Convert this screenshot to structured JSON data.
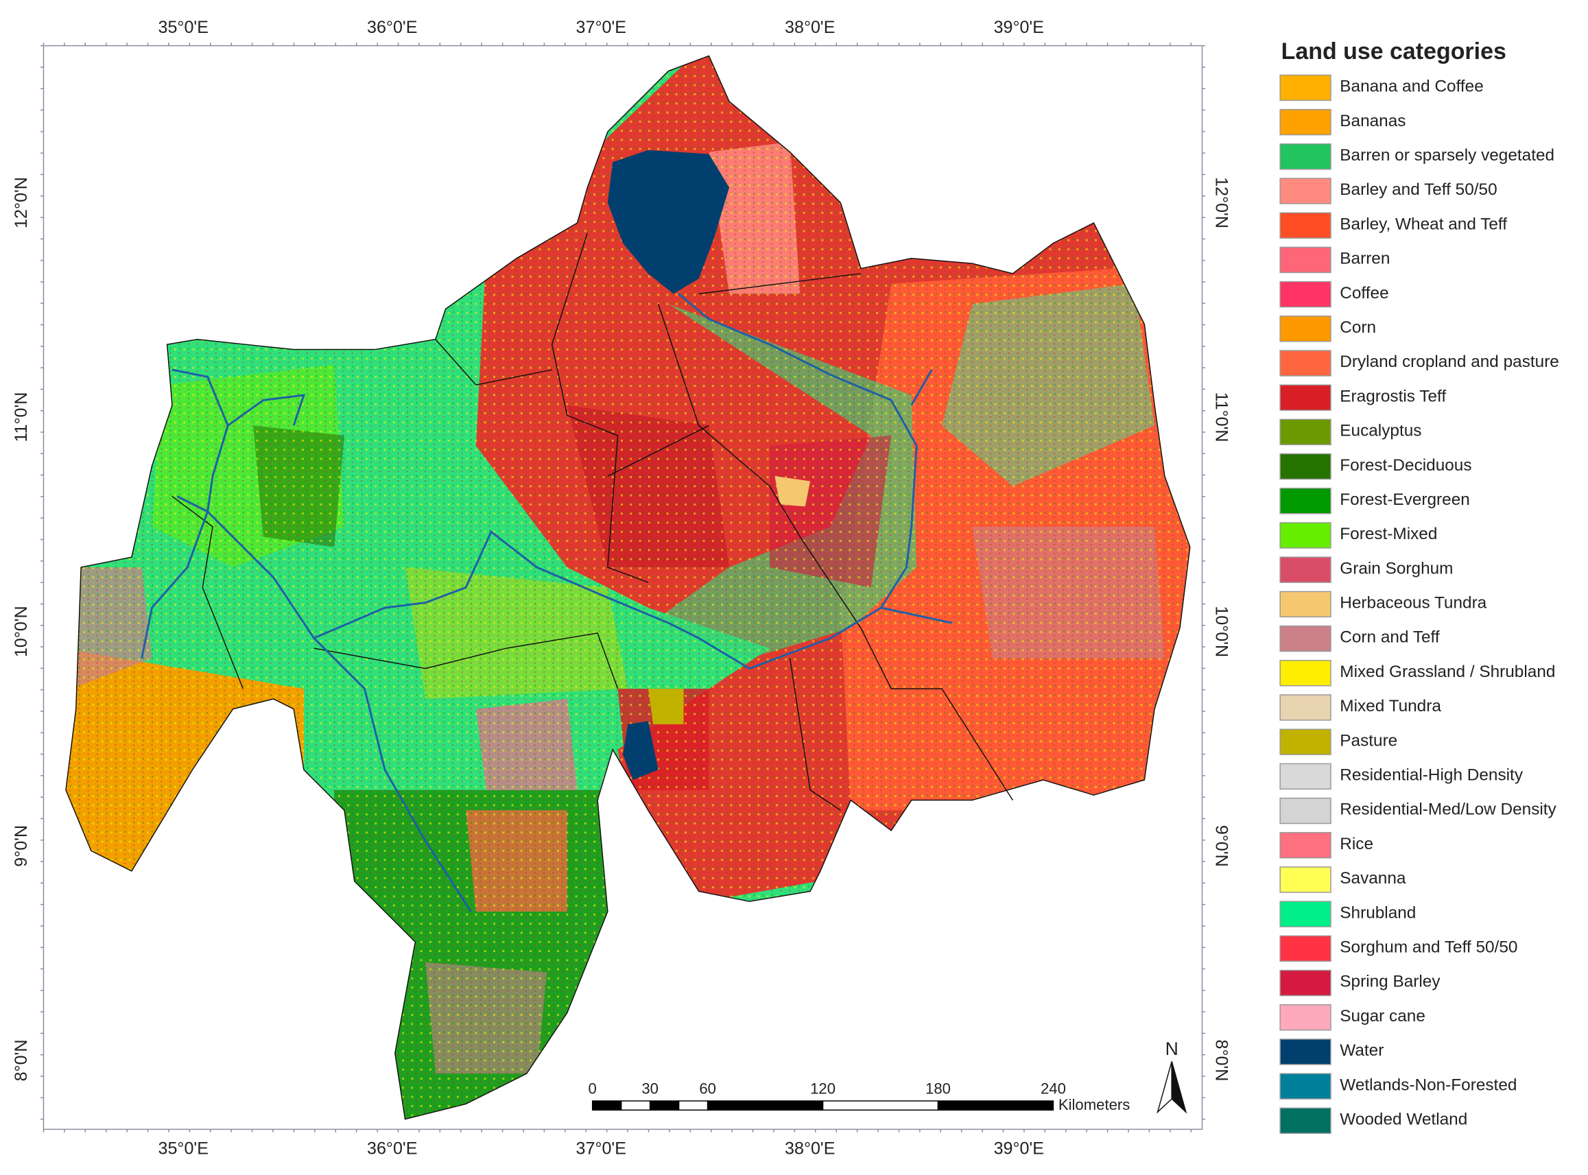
{
  "map": {
    "lon_labels": [
      "35°0'E",
      "36°0'E",
      "37°0'E",
      "38°0'E",
      "39°0'E"
    ],
    "lat_labels": [
      "12°0'N",
      "11°0'N",
      "10°0'N",
      "9°0'N",
      "8°0'N"
    ],
    "scale_bar": {
      "ticks": [
        0,
        30,
        60,
        120,
        180,
        240
      ],
      "unit": "Kilometers"
    },
    "north": "N"
  },
  "legend": {
    "title": "Land use categories",
    "items": [
      {
        "label": "Banana and Coffee",
        "color": "#ffb000"
      },
      {
        "label": "Bananas",
        "color": "#ffa200"
      },
      {
        "label": "Barren or sparsely vegetated",
        "color": "#21c45e"
      },
      {
        "label": "Barley and Teff 50/50",
        "color": "#ff8a80"
      },
      {
        "label": "Barley, Wheat and Teff",
        "color": "#ff4d26"
      },
      {
        "label": "Barren",
        "color": "#ff6677"
      },
      {
        "label": "Coffee",
        "color": "#ff3366"
      },
      {
        "label": "Corn",
        "color": "#ff9900"
      },
      {
        "label": "Dryland cropland and pasture",
        "color": "#ff6640"
      },
      {
        "label": "Eragrostis Teff",
        "color": "#d91f26"
      },
      {
        "label": "Eucalyptus",
        "color": "#6b9a00"
      },
      {
        "label": "Forest-Deciduous",
        "color": "#267300"
      },
      {
        "label": "Forest-Evergreen",
        "color": "#009900"
      },
      {
        "label": "Forest-Mixed",
        "color": "#66ee00"
      },
      {
        "label": "Grain Sorghum",
        "color": "#d94d66"
      },
      {
        "label": "Herbaceous Tundra",
        "color": "#f5c870"
      },
      {
        "label": "Corn and Teff",
        "color": "#cc8088"
      },
      {
        "label": "Mixed Grassland / Shrubland",
        "color": "#ffee00"
      },
      {
        "label": "Mixed Tundra",
        "color": "#e8d4b0"
      },
      {
        "label": "Pasture",
        "color": "#c2b200"
      },
      {
        "label": "Residential-High Density",
        "color": "#d9d9d9"
      },
      {
        "label": "Residential-Med/Low Density",
        "color": "#d4d4d4"
      },
      {
        "label": "Rice",
        "color": "#ff7080"
      },
      {
        "label": "Savanna",
        "color": "#ffff55"
      },
      {
        "label": "Shrubland",
        "color": "#00ee88"
      },
      {
        "label": "Sorghum and Teff 50/50",
        "color": "#ff3344"
      },
      {
        "label": "Spring Barley",
        "color": "#d41a40"
      },
      {
        "label": "Sugar cane",
        "color": "#ffaabb"
      },
      {
        "label": "Water",
        "color": "#003f6e"
      },
      {
        "label": "Wetlands-Non-Forested",
        "color": "#00809a"
      },
      {
        "label": "Wooded Wetland",
        "color": "#007060"
      }
    ]
  }
}
